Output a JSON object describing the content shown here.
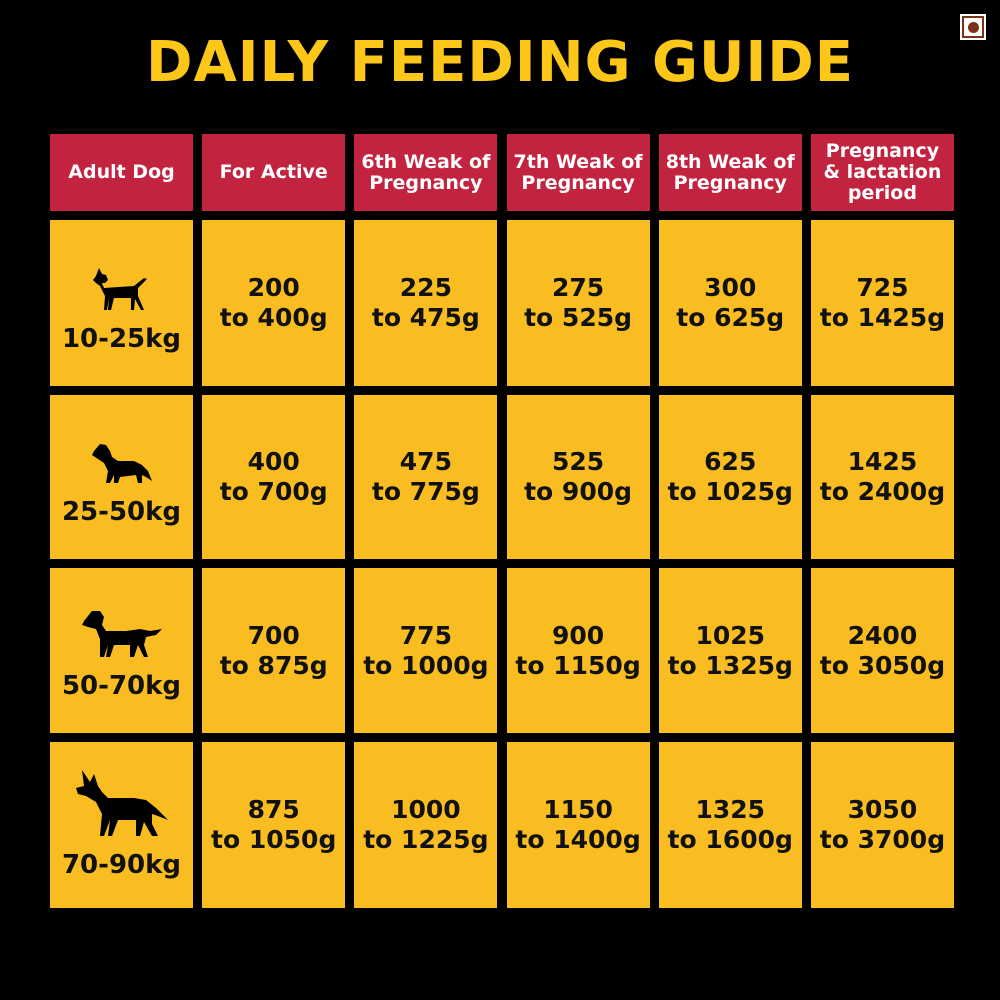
{
  "title": "DAILY FEEDING GUIDE",
  "colors": {
    "background": "#000000",
    "title": "#FDC719",
    "header": "#C22440",
    "cell": "#F9BD21"
  },
  "header": [
    "Adult Dog",
    "For Active",
    "6th Weak of Pregnancy",
    "7th Weak of Pregnancy",
    "8th Weak of Pregnancy",
    "Pregnancy & lactation period"
  ],
  "rows": [
    {
      "icon": "small-dog-icon",
      "weight": "10-25kg",
      "cells": [
        {
          "top": "200",
          "bottom": "to 400g"
        },
        {
          "top": "225",
          "bottom": "to 475g"
        },
        {
          "top": "275",
          "bottom": "to 525g"
        },
        {
          "top": "300",
          "bottom": "to 625g"
        },
        {
          "top": "725",
          "bottom": "to 1425g"
        }
      ]
    },
    {
      "icon": "collie-dog-icon",
      "weight": "25-50kg",
      "cells": [
        {
          "top": "400",
          "bottom": "to 700g"
        },
        {
          "top": "475",
          "bottom": "to 775g"
        },
        {
          "top": "525",
          "bottom": "to 900g"
        },
        {
          "top": "625",
          "bottom": "to 1025g"
        },
        {
          "top": "1425",
          "bottom": "to 2400g"
        }
      ]
    },
    {
      "icon": "retriever-dog-icon",
      "weight": "50-70kg",
      "cells": [
        {
          "top": "700",
          "bottom": "to 875g"
        },
        {
          "top": "775",
          "bottom": "to 1000g"
        },
        {
          "top": "900",
          "bottom": "to 1150g"
        },
        {
          "top": "1025",
          "bottom": "to 1325g"
        },
        {
          "top": "2400",
          "bottom": "to 3050g"
        }
      ]
    },
    {
      "icon": "shepherd-dog-icon",
      "weight": "70-90kg",
      "cells": [
        {
          "top": "875",
          "bottom": "to 1050g"
        },
        {
          "top": "1000",
          "bottom": "to 1225g"
        },
        {
          "top": "1150",
          "bottom": "to 1400g"
        },
        {
          "top": "1325",
          "bottom": "to 1600g"
        },
        {
          "top": "3050",
          "bottom": "to 3700g"
        }
      ]
    }
  ]
}
